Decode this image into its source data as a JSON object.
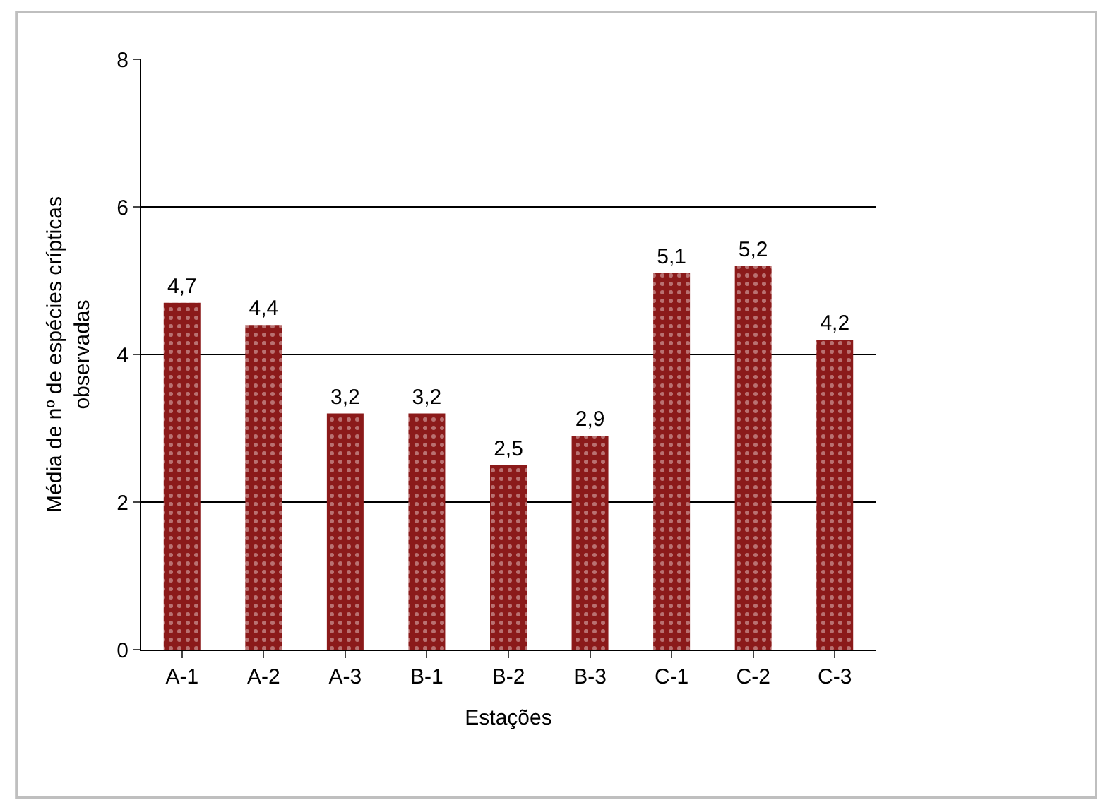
{
  "chart_data": {
    "type": "bar",
    "xlabel": "Estações",
    "ylabel": "Média de nº de espécies crípticas\nobservadas",
    "categories": [
      "A-1",
      "A-2",
      "A-3",
      "B-1",
      "B-2",
      "B-3",
      "C-1",
      "C-2",
      "C-3"
    ],
    "values": [
      4.7,
      4.4,
      3.2,
      3.2,
      2.5,
      2.9,
      5.1,
      5.2,
      4.2
    ],
    "value_labels": [
      "4,7",
      "4,4",
      "3,2",
      "3,2",
      "2,5",
      "2,9",
      "5,1",
      "5,2",
      "4,2"
    ],
    "color": "#8b1a1a",
    "ylim": [
      0,
      8
    ],
    "yticks": [
      0,
      2,
      4,
      6,
      8
    ],
    "grid": "y"
  }
}
